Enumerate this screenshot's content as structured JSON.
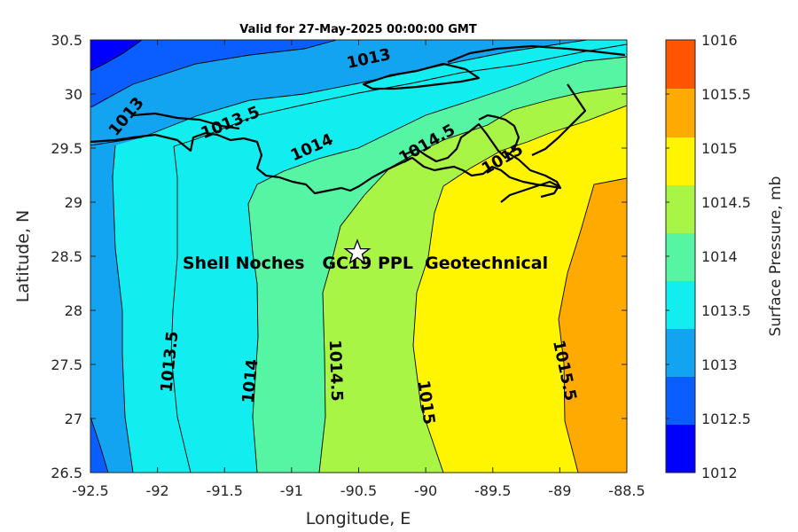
{
  "title": "Valid for 27-May-2025 00:00:00 GMT",
  "xlabel": "Longitude, E",
  "ylabel": "Latitude, N",
  "colorbar_label": "Surface Pressure, mb",
  "x_ticks": [
    "-92.5",
    "-92",
    "-91.5",
    "-91",
    "-90.5",
    "-90",
    "-89.5",
    "-89",
    "-88.5"
  ],
  "y_ticks": [
    "26.5",
    "27",
    "27.5",
    "28",
    "28.5",
    "29",
    "29.5",
    "30",
    "30.5"
  ],
  "colorbar_ticks": [
    "1012",
    "1012.5",
    "1013",
    "1013.5",
    "1014",
    "1014.5",
    "1015",
    "1015.5",
    "1016"
  ],
  "annotation": "Shell Noches   GC19 PPL  Geotechnical",
  "site_marker": {
    "lon": -90.52,
    "lat": 28.55,
    "symbol": "star"
  },
  "colors": {
    "1012-1012.5": "#0000ff",
    "1012.5-1013": "#0a5eff",
    "1013-1013.5": "#12a4f0",
    "1013.5-1014": "#12eef0",
    "1014-1014.5": "#56f5a4",
    "1014.5-1015": "#a8f546",
    "1015-1015.5": "#fff500",
    "1015.5-1016": "#ffaa00",
    "above-1015.5-top": "#ff5500"
  },
  "contour_labels": [
    {
      "text": "1013",
      "lon": -92.25,
      "lat": 29.8
    },
    {
      "text": "1013",
      "lon": -90.1,
      "lat": 30.3
    },
    {
      "text": "1013.5",
      "lon": -91.5,
      "lat": 29.7
    },
    {
      "text": "1014",
      "lon": -90.8,
      "lat": 29.45
    },
    {
      "text": "1014.5",
      "lon": -90.05,
      "lat": 29.52
    },
    {
      "text": "1015",
      "lon": -89.4,
      "lat": 29.35
    },
    {
      "text": "1013.5",
      "lon": -91.92,
      "lat": 27.5
    },
    {
      "text": "1014",
      "lon": -91.27,
      "lat": 27.33
    },
    {
      "text": "1014.5",
      "lon": -90.85,
      "lat": 27.43
    },
    {
      "text": "1015",
      "lon": -90.15,
      "lat": 27.07
    },
    {
      "text": "1015.5",
      "lon": -88.95,
      "lat": 27.43
    }
  ],
  "chart_data": {
    "type": "contourf",
    "variable": "Surface Pressure, mb",
    "xlim": [
      -92.5,
      -88.5
    ],
    "ylim": [
      26.5,
      30.5
    ],
    "clim": [
      1012,
      1016
    ],
    "levels": [
      1012,
      1012.5,
      1013,
      1013.5,
      1014,
      1014.5,
      1015,
      1015.5,
      1016
    ],
    "contours": [
      {
        "level": 1012.5,
        "points": [
          [
            -92.5,
            30.28
          ],
          [
            -92.38,
            30.35
          ],
          [
            -92.2,
            30.5
          ]
        ]
      },
      {
        "level": 1012.5,
        "points": [
          [
            -92.5,
            26.75
          ],
          [
            -92.42,
            26.5
          ]
        ]
      },
      {
        "level": 1013,
        "points": [
          [
            -92.5,
            29.55
          ],
          [
            -92.3,
            29.7
          ],
          [
            -92.0,
            29.95
          ],
          [
            -91.6,
            30.15
          ],
          [
            -91.2,
            30.3
          ],
          [
            -90.9,
            30.35
          ],
          [
            -90.5,
            30.3
          ],
          [
            -90.2,
            30.3
          ],
          [
            -89.9,
            30.4
          ],
          [
            -89.8,
            30.5
          ]
        ]
      },
      {
        "level": 1013,
        "points": [
          [
            -92.3,
            29.55
          ],
          [
            -92.3,
            28.5
          ],
          [
            -92.3,
            27.6
          ],
          [
            -92.2,
            27.0
          ],
          [
            -92.05,
            26.5
          ]
        ]
      },
      {
        "level": 1013.5,
        "points": [
          [
            -92.0,
            29.55
          ],
          [
            -91.7,
            29.65
          ],
          [
            -91.4,
            29.8
          ],
          [
            -91.1,
            29.9
          ],
          [
            -90.6,
            30.05
          ],
          [
            -90.2,
            30.15
          ],
          [
            -89.8,
            30.2
          ],
          [
            -89.4,
            30.3
          ],
          [
            -89.0,
            30.4
          ],
          [
            -88.8,
            30.5
          ]
        ]
      },
      {
        "level": 1013.5,
        "points": [
          [
            -92.0,
            29.55
          ],
          [
            -91.97,
            28.5
          ],
          [
            -91.9,
            28.0
          ],
          [
            -91.95,
            27.6
          ],
          [
            -91.95,
            27.0
          ],
          [
            -91.78,
            26.5
          ]
        ]
      },
      {
        "level": 1014,
        "points": [
          [
            -91.4,
            29.3
          ],
          [
            -91.1,
            29.45
          ],
          [
            -90.8,
            29.55
          ],
          [
            -90.4,
            29.75
          ],
          [
            -90.1,
            29.85
          ],
          [
            -89.6,
            30.05
          ],
          [
            -89.2,
            30.1
          ],
          [
            -88.9,
            30.3
          ],
          [
            -88.5,
            30.4
          ]
        ]
      },
      {
        "level": 1014,
        "points": [
          [
            -91.4,
            29.3
          ],
          [
            -91.4,
            28.7
          ],
          [
            -91.3,
            28.2
          ],
          [
            -91.25,
            27.7
          ],
          [
            -91.3,
            27.0
          ],
          [
            -91.25,
            26.5
          ]
        ]
      },
      {
        "level": 1014.5,
        "points": [
          [
            -90.6,
            29.0
          ],
          [
            -90.3,
            29.2
          ],
          [
            -90.1,
            29.45
          ],
          [
            -89.85,
            29.6
          ],
          [
            -89.6,
            29.75
          ],
          [
            -89.2,
            29.9
          ],
          [
            -89.0,
            29.95
          ],
          [
            -88.5,
            30.05
          ]
        ]
      },
      {
        "level": 1014.5,
        "points": [
          [
            -90.6,
            29.0
          ],
          [
            -90.8,
            28.5
          ],
          [
            -90.87,
            28.0
          ],
          [
            -90.85,
            27.5
          ],
          [
            -90.85,
            27.0
          ],
          [
            -90.78,
            26.5
          ]
        ]
      },
      {
        "level": 1015,
        "points": [
          [
            -89.9,
            29.1
          ],
          [
            -89.6,
            29.2
          ],
          [
            -89.35,
            29.5
          ],
          [
            -89.1,
            29.6
          ],
          [
            -88.8,
            29.7
          ],
          [
            -88.5,
            29.85
          ]
        ]
      },
      {
        "level": 1015,
        "points": [
          [
            -89.9,
            29.1
          ],
          [
            -90.0,
            28.5
          ],
          [
            -90.2,
            28.0
          ],
          [
            -90.2,
            27.5
          ],
          [
            -90.15,
            27.0
          ],
          [
            -90.0,
            26.5
          ]
        ]
      },
      {
        "level": 1015.5,
        "points": [
          [
            -88.5,
            29.25
          ],
          [
            -88.75,
            29.15
          ],
          [
            -88.85,
            28.7
          ],
          [
            -88.95,
            28.3
          ],
          [
            -89.0,
            27.9
          ],
          [
            -88.95,
            27.5
          ],
          [
            -88.95,
            26.9
          ],
          [
            -89.1,
            26.5
          ]
        ]
      }
    ]
  }
}
